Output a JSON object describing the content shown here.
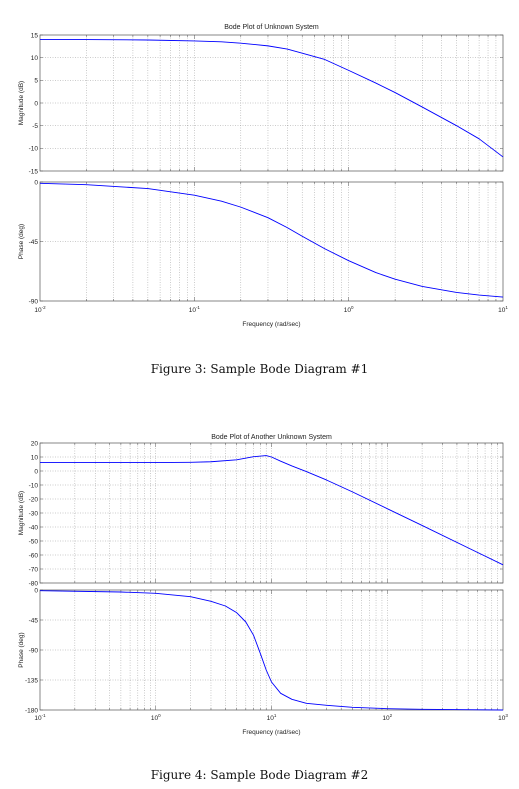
{
  "chart_data": [
    {
      "type": "line",
      "title": "Bode Plot of Unknown System",
      "xlabel": "Frequency  (rad/sec)",
      "xscale": "log",
      "xlim": [
        0.01,
        10
      ],
      "x_tick_labels": [
        {
          "base": "10",
          "exp": "-2"
        },
        {
          "base": "10",
          "exp": "-1"
        },
        {
          "base": "10",
          "exp": "0"
        },
        {
          "base": "10",
          "exp": "1"
        }
      ],
      "grid": true,
      "panels": [
        {
          "name": "magnitude",
          "ylabel": "Magnitude (dB)",
          "ylim": [
            -15,
            15
          ],
          "yticks": [
            15,
            10,
            5,
            0,
            -5,
            -10,
            -15
          ],
          "series": [
            {
              "color": "#0000ff",
              "x": [
                0.01,
                0.02,
                0.05,
                0.1,
                0.15,
                0.2,
                0.3,
                0.4,
                0.5,
                0.7,
                1.0,
                1.5,
                2.0,
                3.0,
                5.0,
                7.0,
                10.0
              ],
              "y": [
                14.0,
                14.0,
                13.9,
                13.7,
                13.5,
                13.2,
                12.6,
                11.9,
                11.0,
                9.6,
                7.2,
                4.4,
                2.3,
                -0.9,
                -5.0,
                -7.9,
                -11.9
              ]
            }
          ]
        },
        {
          "name": "phase",
          "ylabel": "Phase (deg)",
          "ylim": [
            -90,
            0
          ],
          "yticks": [
            0,
            -45,
            -90
          ],
          "series": [
            {
              "color": "#0000ff",
              "x": [
                0.01,
                0.02,
                0.05,
                0.1,
                0.15,
                0.2,
                0.3,
                0.4,
                0.5,
                0.7,
                1.0,
                1.5,
                2.0,
                3.0,
                5.0,
                7.0,
                10.0
              ],
              "y": [
                -1.0,
                -2.0,
                -5.0,
                -10.0,
                -14.5,
                -19.0,
                -27.0,
                -34.5,
                -41.0,
                -50.5,
                -59.5,
                -68.5,
                -73.5,
                -79.0,
                -83.5,
                -85.5,
                -87.0
              ]
            }
          ]
        }
      ]
    },
    {
      "type": "line",
      "title": "Bode Plot of Another Unknown System",
      "xlabel": "Frequency  (rad/sec)",
      "xscale": "log",
      "xlim": [
        0.1,
        1000
      ],
      "x_tick_labels": [
        {
          "base": "10",
          "exp": "-1"
        },
        {
          "base": "10",
          "exp": "0"
        },
        {
          "base": "10",
          "exp": "1"
        },
        {
          "base": "10",
          "exp": "2"
        },
        {
          "base": "10",
          "exp": "3"
        }
      ],
      "grid": true,
      "panels": [
        {
          "name": "magnitude",
          "ylabel": "Magnitude (dB)",
          "ylim": [
            -80,
            20
          ],
          "yticks": [
            20,
            10,
            0,
            -10,
            -20,
            -30,
            -40,
            -50,
            -60,
            -70,
            -80
          ],
          "series": [
            {
              "color": "#0000ff",
              "x": [
                0.1,
                0.5,
                1,
                2,
                3,
                5,
                7,
                9,
                10,
                12,
                15,
                20,
                30,
                50,
                100,
                200,
                500,
                1000
              ],
              "y": [
                6,
                6,
                6,
                6.2,
                6.6,
                8.0,
                10.2,
                11.0,
                10.0,
                7.0,
                3.6,
                -0.4,
                -6.5,
                -14.9,
                -26.9,
                -38.9,
                -54.9,
                -67.0
              ]
            }
          ]
        },
        {
          "name": "phase",
          "ylabel": "Phase (deg)",
          "ylim": [
            -180,
            0
          ],
          "yticks": [
            0,
            -45,
            -90,
            -135,
            -180
          ],
          "series": [
            {
              "color": "#0000ff",
              "x": [
                0.1,
                0.5,
                1,
                2,
                3,
                4,
                5,
                6,
                7,
                8,
                9,
                10,
                12,
                15,
                20,
                30,
                50,
                100,
                200,
                500,
                1000
              ],
              "y": [
                -1,
                -3,
                -5,
                -10,
                -17,
                -24,
                -34,
                -48,
                -68,
                -95,
                -120,
                -138,
                -155,
                -164,
                -170,
                -173,
                -176,
                -178,
                -179,
                -179.5,
                -180
              ]
            }
          ]
        }
      ]
    }
  ],
  "captions": {
    "fig1": "Figure 3: Sample Bode Diagram #1",
    "fig2": "Figure 4: Sample Bode Diagram #2"
  }
}
